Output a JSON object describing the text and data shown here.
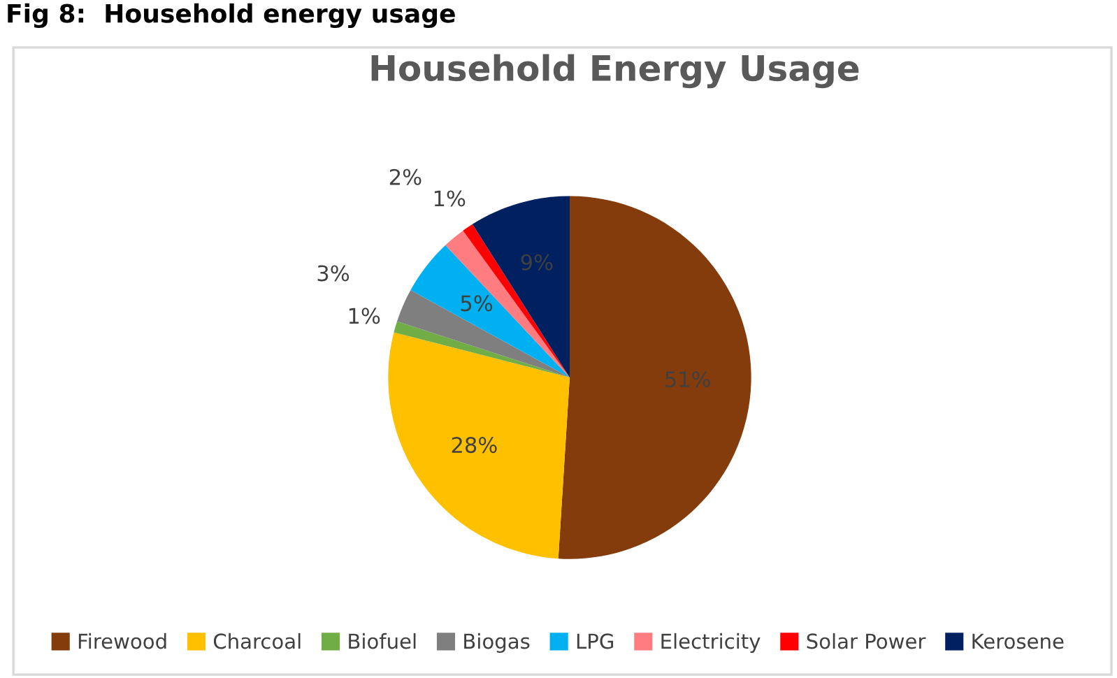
{
  "chart_data": {
    "type": "pie",
    "title": "Household Energy Usage",
    "annotations": [
      "Fig 8:  Household energy usage"
    ],
    "categories": [
      "Firewood",
      "Charcoal",
      "Biofuel",
      "Biogas",
      "LPG",
      "Electricity",
      "Solar Power",
      "Kerosene"
    ],
    "values": [
      51,
      28,
      1,
      3,
      5,
      2,
      1,
      9
    ],
    "colors": [
      "#843c0c",
      "#ffc000",
      "#70ad47",
      "#7f7f7f",
      "#00b0f0",
      "#ff7c80",
      "#ff0000",
      "#002060"
    ],
    "value_labels": [
      "51%",
      "28%",
      "1%",
      "3%",
      "5%",
      "2%",
      "1%",
      "9%"
    ],
    "legend": "bottom"
  }
}
